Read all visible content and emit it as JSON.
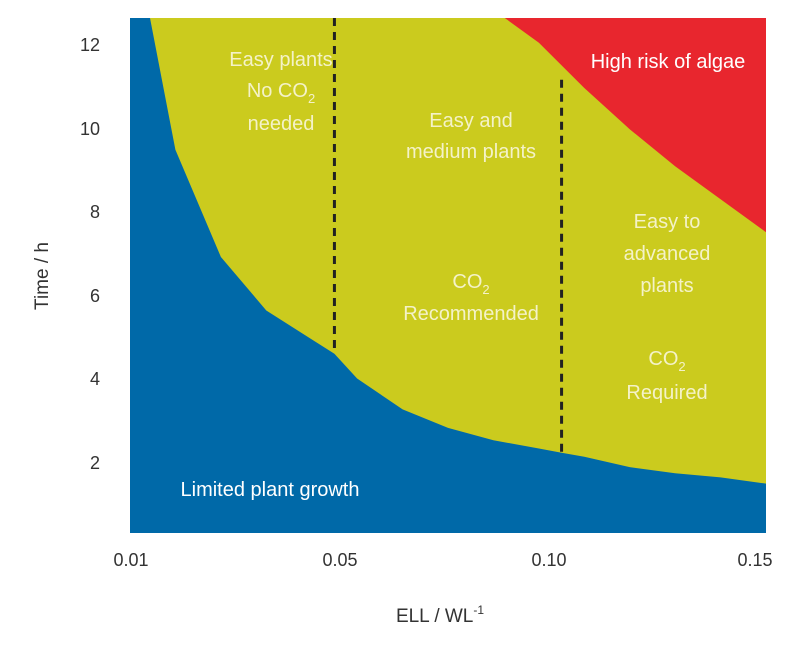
{
  "chart_data": {
    "type": "area",
    "title": "",
    "xlabel": "ELL / WL",
    "xlabel_superscript": "-1",
    "ylabel": "Time / h",
    "x_ticks": [
      "0.01",
      "0.05",
      "0.10",
      "0.15"
    ],
    "y_ticks": [
      "2",
      "4",
      "6",
      "8",
      "10",
      "12"
    ],
    "xlim": [
      0.01,
      0.15
    ],
    "ylim": [
      0,
      12.5
    ],
    "grid": false,
    "colors": {
      "limited": "#0069a8",
      "optimal": "#cbcb1e",
      "algae": "#e8262e",
      "divider": "#222222"
    },
    "boundaries": {
      "lower_curve": {
        "x": [
          0.0144,
          0.02,
          0.03,
          0.04,
          0.05,
          0.055,
          0.06,
          0.07,
          0.08,
          0.09,
          0.1,
          0.105,
          0.11,
          0.12,
          0.13,
          0.14,
          0.15
        ],
        "y": [
          12.5,
          9.3,
          6.7,
          5.4,
          4.7,
          4.35,
          3.75,
          3.0,
          2.55,
          2.25,
          2.05,
          1.95,
          1.85,
          1.6,
          1.45,
          1.35,
          1.2
        ]
      },
      "algae_curve": {
        "x": [
          0.0925,
          0.1,
          0.11,
          0.12,
          0.13,
          0.14,
          0.15
        ],
        "y": [
          12.5,
          11.9,
          10.8,
          9.8,
          8.9,
          8.1,
          7.3
        ]
      }
    },
    "dividers": [
      {
        "x": 0.055,
        "y_from": 4.35,
        "y_to": 12.5
      },
      {
        "x": 0.105,
        "y_from": 1.95,
        "y_to": 11.0
      }
    ],
    "regions": [
      {
        "label_lines": [
          "Limited plant growth"
        ]
      },
      {
        "label_lines": [
          "Easy plants",
          "No CO2",
          "needed"
        ]
      },
      {
        "label_lines": [
          "Easy and",
          "medium plants"
        ]
      },
      {
        "label_lines": [
          "CO2",
          "Recommended"
        ]
      },
      {
        "label_lines": [
          "Easy to",
          "advanced",
          "plants"
        ]
      },
      {
        "label_lines": [
          "CO2",
          "Required"
        ]
      },
      {
        "label_lines": [
          "High risk of algae"
        ]
      }
    ]
  }
}
